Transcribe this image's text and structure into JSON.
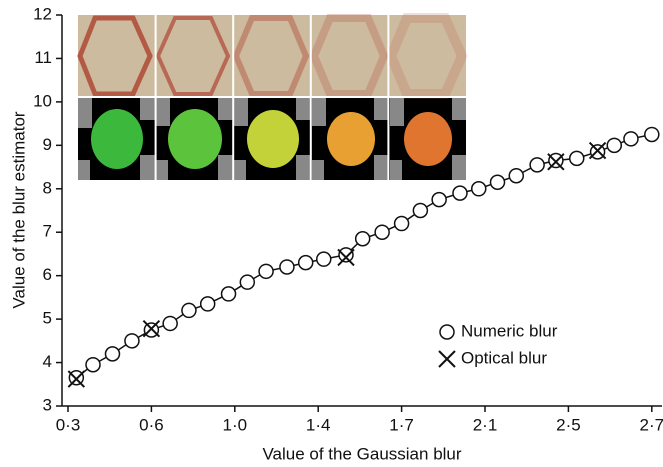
{
  "chart_data": {
    "type": "line",
    "xlabel": "Value of the Gaussian blur",
    "ylabel": "Value of the blur estimator",
    "xlim": [
      0.28,
      2.73
    ],
    "xticks": [
      {
        "value": 0.3,
        "label": "0·3"
      },
      {
        "value": 0.6,
        "label": "0·6"
      },
      {
        "value": 1.0,
        "label": "1·0"
      },
      {
        "value": 1.4,
        "label": "1·4"
      },
      {
        "value": 1.7,
        "label": "1·7"
      },
      {
        "value": 2.1,
        "label": "2·1"
      },
      {
        "value": 2.5,
        "label": "2·5"
      },
      {
        "value": 2.7,
        "label": "2·7"
      }
    ],
    "ylim": [
      3,
      12
    ],
    "yticks": [
      3,
      4,
      5,
      6,
      7,
      8,
      9,
      10,
      11,
      12
    ],
    "grid": false,
    "legend": "lower right",
    "series": [
      {
        "name": "Numeric blur",
        "marker": "circle",
        "color": "#111111",
        "line": true,
        "x": [
          0.33,
          0.39,
          0.46,
          0.53,
          0.6,
          0.69,
          0.78,
          0.87,
          0.97,
          1.06,
          1.15,
          1.25,
          1.34,
          1.42,
          1.5,
          1.56,
          1.63,
          1.7,
          1.79,
          1.88,
          1.98,
          2.07,
          2.16,
          2.25,
          2.35,
          2.44,
          2.52,
          2.57,
          2.61,
          2.65,
          2.7
        ],
        "values": [
          3.65,
          3.95,
          4.2,
          4.5,
          4.75,
          4.9,
          5.2,
          5.35,
          5.58,
          5.85,
          6.1,
          6.2,
          6.3,
          6.38,
          6.48,
          6.85,
          7.0,
          7.2,
          7.5,
          7.75,
          7.9,
          8.0,
          8.15,
          8.3,
          8.55,
          8.65,
          8.7,
          8.85,
          9.0,
          9.15,
          9.25
        ]
      },
      {
        "name": "Optical blur",
        "marker": "cross",
        "color": "#111111",
        "line": false,
        "x": [
          0.33,
          0.6,
          1.5,
          2.44,
          2.57
        ],
        "values": [
          3.62,
          4.78,
          6.42,
          8.62,
          8.88
        ]
      }
    ]
  }
}
